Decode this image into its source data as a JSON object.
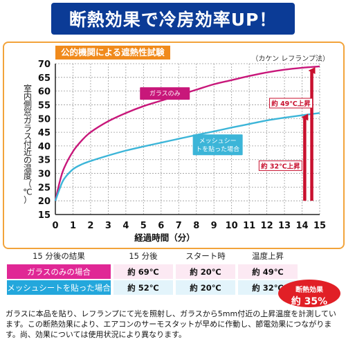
{
  "banner": {
    "title": "断熱効果で冷房効率UP！"
  },
  "test_label": "公的機関による遮熱性試験",
  "method_label": "（カケン レフランプ法）",
  "chart_data": {
    "type": "line",
    "ylabel": "室内側窓ガラス付近の温度（℃）",
    "xlabel": "経過時間（分）",
    "ylim": [
      15,
      70
    ],
    "xlim": [
      0,
      15
    ],
    "yticks": [
      15,
      20,
      25,
      30,
      35,
      40,
      45,
      50,
      55,
      60,
      65,
      70
    ],
    "xticks": [
      0,
      1,
      2,
      3,
      4,
      5,
      6,
      7,
      8,
      9,
      10,
      11,
      12,
      13,
      14,
      15
    ],
    "series": [
      {
        "name": "ガラスのみ",
        "color": "#c8177a",
        "x": [
          0,
          0.25,
          0.5,
          1,
          1.5,
          2,
          3,
          4,
          5,
          6,
          7,
          8,
          9,
          10,
          11,
          12,
          13,
          14,
          15
        ],
        "y": [
          20,
          27,
          32,
          38,
          42,
          45,
          49,
          52,
          54.5,
          56.5,
          58.5,
          60.5,
          62.5,
          64,
          65.5,
          66.8,
          67.8,
          68.5,
          69
        ]
      },
      {
        "name": "メッシュシートを貼った場合",
        "color": "#3cb5d8",
        "x": [
          0,
          0.25,
          0.5,
          1,
          1.5,
          2,
          3,
          4,
          5,
          6,
          7,
          8,
          9,
          10,
          11,
          12,
          13,
          14,
          15
        ],
        "y": [
          20,
          24.5,
          28,
          31.5,
          33.3,
          34.5,
          36.5,
          38.3,
          39.8,
          41.2,
          42.6,
          44,
          45.3,
          46.7,
          48,
          49.3,
          50.3,
          51.2,
          52
        ]
      }
    ],
    "annotations": [
      {
        "text": "約 49℃上昇",
        "color": "#c8102e"
      },
      {
        "text": "約 32℃上昇",
        "color": "#c8102e"
      }
    ]
  },
  "table": {
    "headers": [
      "15 分後の結果",
      "15 分後",
      "スタート時",
      "温度上昇"
    ],
    "rows": [
      {
        "label": "ガラスのみの場合",
        "after15": "約 69℃",
        "start": "約 20℃",
        "rise": "約 49℃"
      },
      {
        "label": "メッシュシートを貼った場合",
        "after15": "約 52℃",
        "start": "約 20℃",
        "rise": "約 32℃"
      }
    ]
  },
  "effect_badge": {
    "line1": "断熱効果",
    "line2": "約 35%"
  },
  "note": "ガラスに本品を貼り、レフランプにて光を照射し、ガラスから5mm付近の上昇温度を計測しています。この断熱効果により、エアコンのサーモスタットが早めに作動し、節電効果につながります。尚、効果については使用状況により異なります。",
  "colors": {
    "banner": "#0b3b96",
    "glass": "#c8177a",
    "mesh": "#3cb5d8",
    "arrow": "#c8102e",
    "frame": "#f2a33a",
    "label_bg": "#f08a1c"
  }
}
